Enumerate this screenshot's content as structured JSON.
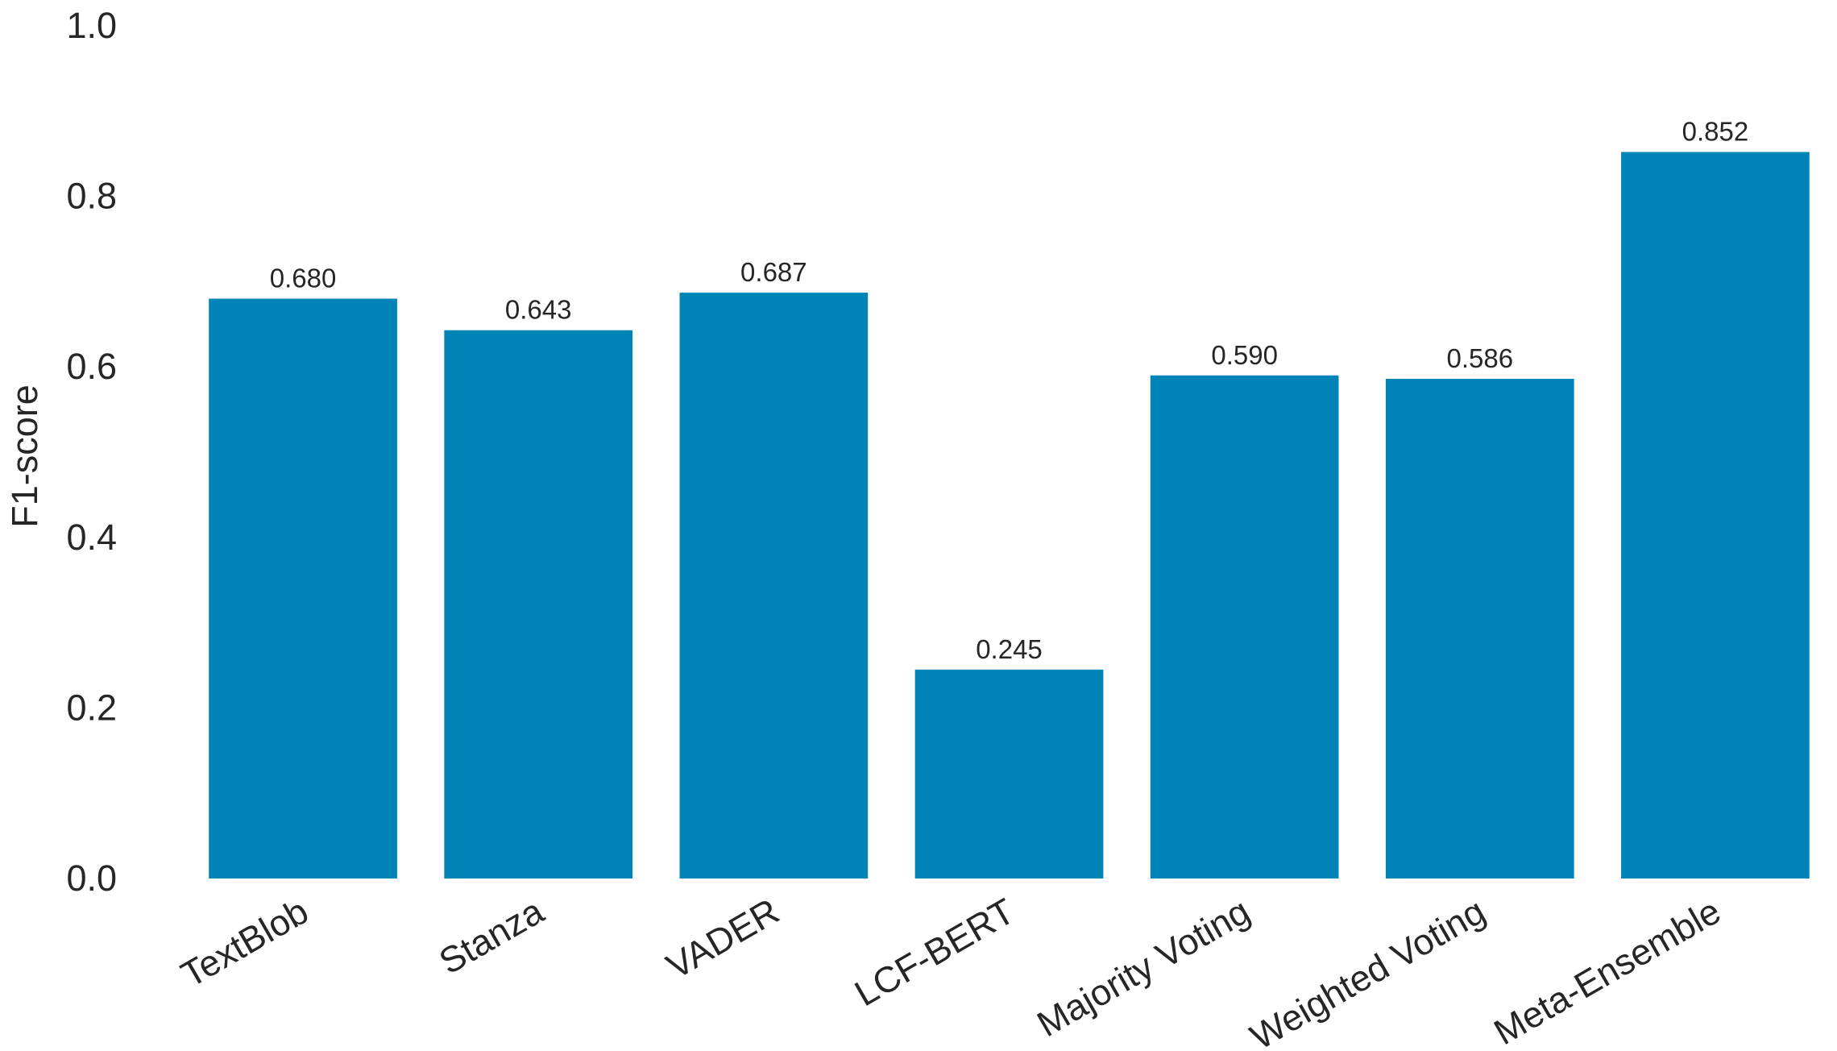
{
  "chart_data": {
    "type": "bar",
    "title": "",
    "xlabel": "",
    "ylabel": "F1-score",
    "ylim": [
      0,
      1.0
    ],
    "yticks": [
      "0.0",
      "0.2",
      "0.4",
      "0.6",
      "0.8",
      "1.0"
    ],
    "grid": false,
    "bar_color": "#0084b8",
    "categories": [
      "TextBlob",
      "Stanza",
      "VADER",
      "LCF-BERT",
      "Majority Voting",
      "Weighted Voting",
      "Meta-Ensemble"
    ],
    "values": [
      0.68,
      0.643,
      0.687,
      0.245,
      0.59,
      0.586,
      0.852
    ],
    "value_labels": [
      "0.680",
      "0.643",
      "0.687",
      "0.245",
      "0.590",
      "0.586",
      "0.852"
    ]
  }
}
